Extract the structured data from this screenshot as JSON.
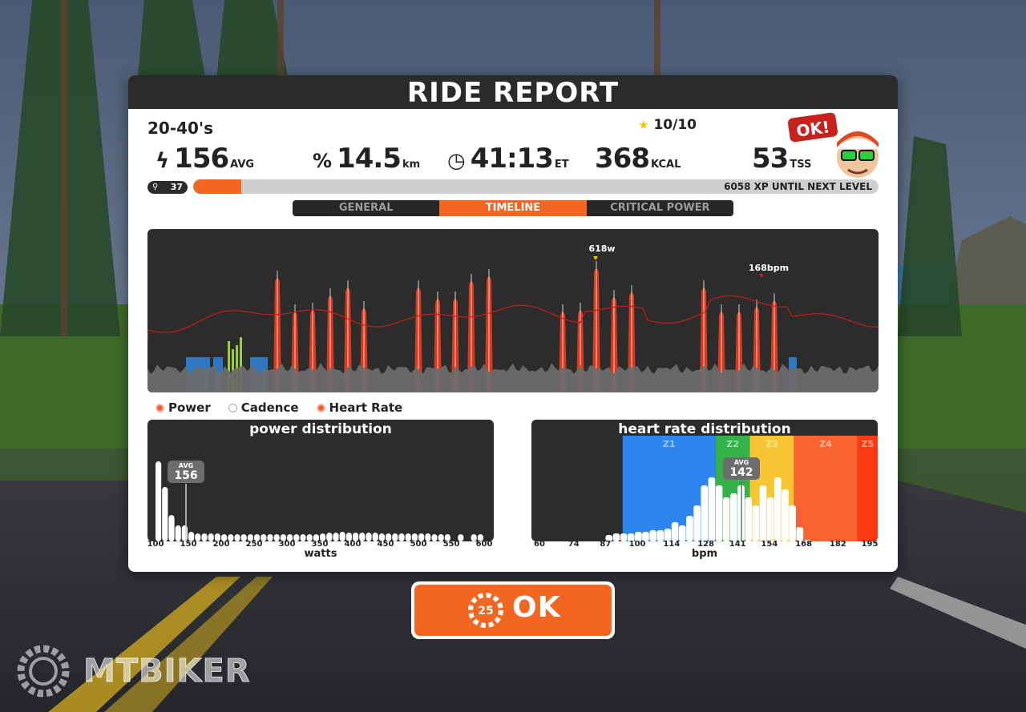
{
  "report": {
    "title": "RIDE REPORT",
    "workout_name": "20-40's",
    "rating": "10/10",
    "stats": {
      "power": {
        "value": "156",
        "unit": "AVG",
        "icon": "lightning-icon"
      },
      "distance": {
        "value": "14.5",
        "unit": "km",
        "icon": "distance-icon"
      },
      "time": {
        "value": "41:13",
        "unit": "ET",
        "icon": "clock-icon"
      },
      "calories": {
        "value": "368",
        "unit": "KCAL"
      },
      "tss": {
        "value": "53",
        "unit": "TSS"
      }
    },
    "level": "37",
    "xp_progress": 0.07,
    "xp_text": "6058 XP UNTIL NEXT LEVEL",
    "mascot_badge": "OK!",
    "tabs": [
      "GENERAL",
      "TIMELINE",
      "CRITICAL POWER"
    ],
    "active_tab": 1,
    "legend": [
      "Power",
      "Cadence",
      "Heart Rate"
    ]
  },
  "timeline": {
    "peak_power_label": "618w",
    "peak_hr_label": "168bpm",
    "colors": {
      "power_bar": "#d83a1f",
      "hr_line": "#c51b1b",
      "baseline": "#6a6a6a",
      "zone_blue": "#2f7fd6"
    }
  },
  "power_distribution": {
    "title": "power distribution",
    "axis_label": "watts",
    "avg_label": "AVG",
    "avg_value": "156",
    "ticks": [
      "100",
      "150",
      "200",
      "250",
      "300",
      "350",
      "400",
      "450",
      "500",
      "550",
      "600"
    ],
    "chart_data": {
      "type": "bar",
      "x_range": [
        100,
        600
      ],
      "ylim": [
        0,
        100
      ],
      "bins": [
        100,
        110,
        120,
        130,
        140,
        150,
        160,
        170,
        180,
        190,
        200,
        210,
        220,
        230,
        240,
        250,
        260,
        270,
        280,
        290,
        300,
        310,
        320,
        330,
        340,
        350,
        360,
        370,
        380,
        390,
        400,
        410,
        420,
        430,
        440,
        450,
        460,
        470,
        480,
        490,
        500,
        510,
        520,
        530,
        540,
        550,
        560,
        570,
        580,
        590
      ],
      "values": [
        100,
        68,
        33,
        20,
        20,
        12,
        10,
        10,
        10,
        10,
        9,
        9,
        9,
        9,
        9,
        9,
        9,
        9,
        9,
        9,
        9,
        9,
        9,
        9,
        9,
        10,
        11,
        11,
        12,
        11,
        11,
        11,
        11,
        11,
        10,
        10,
        10,
        10,
        10,
        10,
        10,
        10,
        9,
        9,
        9,
        0,
        9,
        0,
        9,
        9
      ]
    }
  },
  "hr_distribution": {
    "title": "heart rate distribution",
    "axis_label": "bpm",
    "avg_label": "AVG",
    "avg_value": "142",
    "zones": [
      {
        "name": "Z1",
        "from": 94,
        "to": 132,
        "color": "#2d86f0"
      },
      {
        "name": "Z2",
        "from": 132,
        "to": 146,
        "color": "#36b24a"
      },
      {
        "name": "Z3",
        "from": 146,
        "to": 164,
        "color": "#f6c531"
      },
      {
        "name": "Z4",
        "from": 164,
        "to": 190,
        "color": "#fb6431"
      },
      {
        "name": "Z5",
        "from": 190,
        "to": 205,
        "color": "#fb3a12"
      }
    ],
    "ticks": [
      "60",
      "74",
      "87",
      "100",
      "114",
      "128",
      "141",
      "154",
      "168",
      "182",
      "195"
    ],
    "chart_data": {
      "type": "bar",
      "x_range": [
        60,
        195
      ],
      "ylim": [
        0,
        100
      ],
      "bins": [
        87,
        90,
        93,
        96,
        99,
        102,
        105,
        108,
        111,
        114,
        117,
        120,
        123,
        126,
        129,
        132,
        135,
        138,
        141,
        144,
        147,
        150,
        153,
        156,
        159,
        162,
        165,
        168
      ],
      "values": [
        8,
        10,
        10,
        10,
        12,
        12,
        14,
        14,
        16,
        24,
        20,
        32,
        45,
        70,
        80,
        70,
        55,
        60,
        70,
        55,
        45,
        70,
        55,
        80,
        65,
        45,
        18,
        2
      ]
    }
  },
  "ok_button": {
    "label": "OK",
    "countdown": "25"
  },
  "watermark": "MTBIKER"
}
